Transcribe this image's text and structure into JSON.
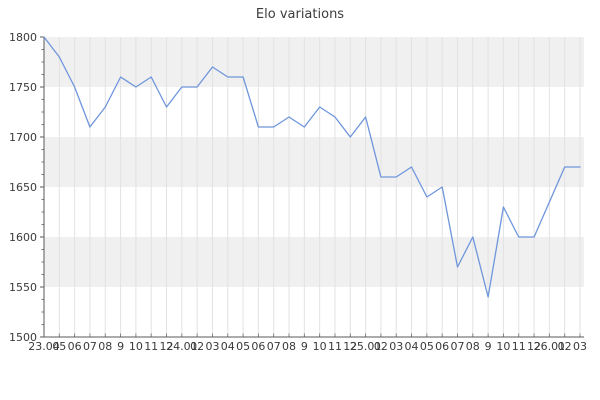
{
  "page": {
    "background": "#ffffff"
  },
  "chart_data": {
    "type": "line",
    "title": "Elo variations",
    "x_labels": [
      "23.04",
      "05",
      "06",
      "07",
      "08",
      "9",
      "10",
      "11",
      "12",
      "24.01",
      "02",
      "03",
      "04",
      "05",
      "06",
      "07",
      "08",
      "9",
      "10",
      "11",
      "12",
      "25.01",
      "02",
      "03",
      "04",
      "05",
      "06",
      "07",
      "08",
      "9",
      "10",
      "11",
      "12",
      "26.01",
      "02",
      "03"
    ],
    "series": [
      {
        "name": "Elo",
        "values": [
          1800,
          1780,
          1750,
          1710,
          1730,
          1760,
          1750,
          1760,
          1730,
          1750,
          1750,
          1770,
          1760,
          1760,
          1710,
          1710,
          1720,
          1710,
          1730,
          1720,
          1700,
          1720,
          1660,
          1660,
          1670,
          1640,
          1650,
          1570,
          1600,
          1540,
          1630,
          1600,
          1600,
          1635,
          1670,
          1670
        ]
      }
    ],
    "ylim": [
      1500,
      1800
    ],
    "y_ticks": [
      1500,
      1550,
      1600,
      1650,
      1700,
      1750,
      1800
    ],
    "y_tick_labels": [
      "1500",
      "1550",
      "1600",
      "1650",
      "1700",
      "1750",
      "1800"
    ],
    "y_minor_tick_step": 12.5,
    "grid": true,
    "legend": false,
    "band_pattern": "alternating horizontal bands, gray at top (1750-1800), every 50",
    "colors": {
      "line": "#6f95dc",
      "band_alt": "#f0f0f0",
      "gridline": "#e2e2e2",
      "axis": "#5a5a5a",
      "x_tick": "#7a7a7a",
      "tick_label": "#3a3a3a",
      "title": "#3c3c3c"
    }
  }
}
